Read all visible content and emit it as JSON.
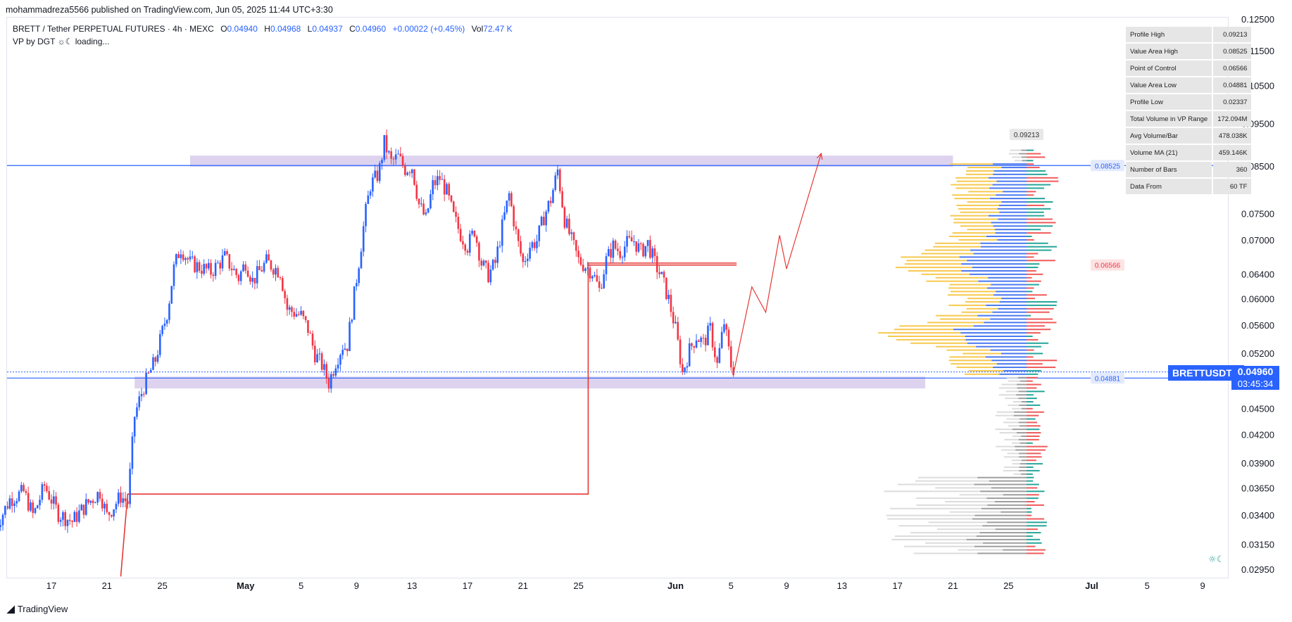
{
  "header": {
    "published": "mohammadreza5566 published on TradingView.com, Jun 05, 2025 11:44 UTC+3:30"
  },
  "legend": {
    "symbol": "BRETT / Tether PERPETUAL FUTURES · 4h · MEXC",
    "o_label": "O",
    "o_value": "0.04940",
    "h_label": "H",
    "h_value": "0.04968",
    "l_label": "L",
    "l_value": "0.04937",
    "c_label": "C",
    "c_value": "0.04960",
    "change": "+0.00022 (+0.45%)",
    "vol_label": "Vol",
    "vol_value": "72.47 K"
  },
  "indicator": {
    "name": "VP by DGT",
    "status": "loading..."
  },
  "vp_stats": [
    {
      "label": "Profile High",
      "value": "0.09213"
    },
    {
      "label": "Value Area High",
      "value": "0.08525"
    },
    {
      "label": "Point of Control",
      "value": "0.06566"
    },
    {
      "label": "Value Area Low",
      "value": "0.04881"
    },
    {
      "label": "Profile Low",
      "value": "0.02337"
    },
    {
      "label": "Total Volume in VP Range",
      "value": "172.094M"
    },
    {
      "label": "Avg Volume/Bar",
      "value": "478.038K"
    },
    {
      "label": "Volume MA (21)",
      "value": "459.146K"
    },
    {
      "label": "Number of Bars",
      "value": "360"
    },
    {
      "label": "Data From",
      "value": "60 TF"
    }
  ],
  "price_tag": {
    "symbol": "BRETTUSDT.P",
    "last": "0.04960",
    "timer": "03:45:34"
  },
  "footer": {
    "brand": "TradingView"
  },
  "colors": {
    "up": "#2962ff",
    "down": "#f23645",
    "value_area_fill": "#d1c4e9",
    "vp_up": "#f7c94f",
    "vp_down": "#4a78f0",
    "vp_delta_up": "#26a69a",
    "vp_delta_down": "#f05a5a",
    "vp_out": "#9e9e9e",
    "vp_out_light": "#dcdcdc",
    "line_red": "#e53935",
    "line_blue": "#2962ff"
  },
  "chart_data": {
    "type": "candlestick",
    "title": "BRETT / Tether PERPETUAL FUTURES · 4h · MEXC",
    "y_axis": {
      "scale": "log",
      "range": [
        0.0285,
        0.126
      ],
      "ticks": [
        "0.12500",
        "0.11500",
        "0.10500",
        "0.09500",
        "0.08500",
        "0.07500",
        "0.07000",
        "0.06400",
        "0.06000",
        "0.05600",
        "0.05200",
        "0.04960",
        "0.04500",
        "0.04200",
        "0.03900",
        "0.03650",
        "0.03400",
        "0.03150",
        "0.02950"
      ]
    },
    "x_axis": {
      "ticks": [
        {
          "date": "2025-04-17",
          "label": "17"
        },
        {
          "date": "2025-04-21",
          "label": "21"
        },
        {
          "date": "2025-04-25",
          "label": "25"
        },
        {
          "date": "2025-05-01",
          "label": "May"
        },
        {
          "date": "2025-05-05",
          "label": "5"
        },
        {
          "date": "2025-05-09",
          "label": "9"
        },
        {
          "date": "2025-05-13",
          "label": "13"
        },
        {
          "date": "2025-05-17",
          "label": "17"
        },
        {
          "date": "2025-05-21",
          "label": "21"
        },
        {
          "date": "2025-05-25",
          "label": "25"
        },
        {
          "date": "2025-06-01",
          "label": "Jun"
        },
        {
          "date": "2025-06-05",
          "label": "5"
        },
        {
          "date": "2025-06-09",
          "label": "9"
        },
        {
          "date": "2025-06-13",
          "label": "13"
        },
        {
          "date": "2025-06-17",
          "label": "17"
        },
        {
          "date": "2025-06-21",
          "label": "21"
        },
        {
          "date": "2025-06-25",
          "label": "25"
        },
        {
          "date": "2025-07-01",
          "label": "Jul"
        },
        {
          "date": "2025-07-05",
          "label": "5"
        },
        {
          "date": "2025-07-09",
          "label": "9"
        }
      ]
    },
    "price_path": [
      [
        "2025-04-13",
        0.033
      ],
      [
        "2025-04-14",
        0.0355
      ],
      [
        "2025-04-15",
        0.0362
      ],
      [
        "2025-04-15.7",
        0.034
      ],
      [
        "2025-04-16.5",
        0.0368
      ],
      [
        "2025-04-17.5",
        0.0342
      ],
      [
        "2025-04-18.5",
        0.0335
      ],
      [
        "2025-04-19.5",
        0.035
      ],
      [
        "2025-04-20.5",
        0.0362
      ],
      [
        "2025-04-21",
        0.034
      ],
      [
        "2025-04-22",
        0.0358
      ],
      [
        "2025-04-22.5",
        0.0352
      ],
      [
        "2025-04-23",
        0.0442
      ],
      [
        "2025-04-23.6",
        0.0475
      ],
      [
        "2025-04-24.5",
        0.0512
      ],
      [
        "2025-04-25.4",
        0.0585
      ],
      [
        "2025-04-25.8",
        0.0648
      ],
      [
        "2025-04-26.3",
        0.0688
      ],
      [
        "2025-04-27",
        0.066
      ],
      [
        "2025-04-28.5",
        0.0645
      ],
      [
        "2025-04-29.5",
        0.067
      ],
      [
        "2025-04-30.5",
        0.0635
      ],
      [
        "2025-05-01",
        0.0662
      ],
      [
        "2025-05-01.5",
        0.063
      ],
      [
        "2025-05-02.5",
        0.0662
      ],
      [
        "2025-05-03.5",
        0.0645
      ],
      [
        "2025-05-04",
        0.0585
      ],
      [
        "2025-05-05",
        0.0575
      ],
      [
        "2025-05-05.5",
        0.0555
      ],
      [
        "2025-05-06",
        0.052
      ],
      [
        "2025-05-06.5",
        0.0505
      ],
      [
        "2025-05-07",
        0.0482
      ],
      [
        "2025-05-07.5",
        0.051
      ],
      [
        "2025-05-08",
        0.0532
      ],
      [
        "2025-05-08.3",
        0.0528
      ],
      [
        "2025-05-08.8",
        0.0602
      ],
      [
        "2025-05-09.2",
        0.0668
      ],
      [
        "2025-05-09.6",
        0.0745
      ],
      [
        "2025-05-10",
        0.081
      ],
      [
        "2025-05-10.6",
        0.0835
      ],
      [
        "2025-05-11",
        0.0905
      ],
      [
        "2025-05-11.5",
        0.086
      ],
      [
        "2025-05-12",
        0.0872
      ],
      [
        "2025-05-12.5",
        0.0845
      ],
      [
        "2025-05-13",
        0.085
      ],
      [
        "2025-05-13.5",
        0.077
      ],
      [
        "2025-05-14",
        0.074
      ],
      [
        "2025-05-14.5",
        0.081
      ],
      [
        "2025-05-15",
        0.0825
      ],
      [
        "2025-05-15.5",
        0.0795
      ],
      [
        "2025-05-16",
        0.0745
      ],
      [
        "2025-05-16.5",
        0.0712
      ],
      [
        "2025-05-17",
        0.069
      ],
      [
        "2025-05-17.5",
        0.072
      ],
      [
        "2025-05-18",
        0.066
      ],
      [
        "2025-05-18.5",
        0.064
      ],
      [
        "2025-05-19",
        0.066
      ],
      [
        "2025-05-19.6",
        0.074
      ],
      [
        "2025-05-20",
        0.079
      ],
      [
        "2025-05-20.6",
        0.07
      ],
      [
        "2025-05-21",
        0.066
      ],
      [
        "2025-05-21.5",
        0.069
      ],
      [
        "2025-05-22",
        0.07
      ],
      [
        "2025-05-22.5",
        0.0745
      ],
      [
        "2025-05-23",
        0.078
      ],
      [
        "2025-05-23.5",
        0.0842
      ],
      [
        "2025-05-24",
        0.074
      ],
      [
        "2025-05-24.5",
        0.07
      ],
      [
        "2025-05-25",
        0.0665
      ],
      [
        "2025-05-26",
        0.0645
      ],
      [
        "2025-05-26.5",
        0.0615
      ],
      [
        "2025-05-27",
        0.0665
      ],
      [
        "2025-05-27.5",
        0.069
      ],
      [
        "2025-05-28",
        0.068
      ],
      [
        "2025-05-28.5",
        0.0695
      ],
      [
        "2025-05-29",
        0.07
      ],
      [
        "2025-05-29.5",
        0.068
      ],
      [
        "2025-05-30",
        0.0695
      ],
      [
        "2025-05-30.5",
        0.066
      ],
      [
        "2025-05-31",
        0.0635
      ],
      [
        "2025-05-31.5",
        0.06
      ],
      [
        "2025-06-01",
        0.0555
      ],
      [
        "2025-06-01.5",
        0.0495
      ],
      [
        "2025-06-02",
        0.0525
      ],
      [
        "2025-06-02.5",
        0.0545
      ],
      [
        "2025-06-03",
        0.0535
      ],
      [
        "2025-06-03.5",
        0.0555
      ],
      [
        "2025-06-04",
        0.0505
      ],
      [
        "2025-06-04.5",
        0.0565
      ],
      [
        "2025-06-05",
        0.0505
      ],
      [
        "2025-06-05.3",
        0.0496
      ]
    ],
    "lines": [
      {
        "name": "value_area_high",
        "price": 0.08525
      },
      {
        "name": "value_area_low",
        "price": 0.04881
      },
      {
        "name": "point_of_control",
        "price": 0.06566
      }
    ],
    "value_area_zones": [
      {
        "from": "2025-04-27",
        "to": "2025-06-21",
        "top": 0.0875,
        "bottom": 0.085
      },
      {
        "from": "2025-04-23",
        "to": "2025-06-19",
        "top": 0.049,
        "bottom": 0.0475
      }
    ],
    "projection_path": [
      [
        "2025-06-05.2",
        0.0496
      ],
      [
        "2025-06-06.5",
        0.062
      ],
      [
        "2025-06-07.5",
        0.058
      ],
      [
        "2025-06-08.5",
        0.071
      ],
      [
        "2025-06-09",
        0.065
      ],
      [
        "2025-06-11.5",
        0.088
      ]
    ],
    "step_line": [
      [
        "2025-04-22",
        0.029
      ],
      [
        "2025-04-22.5",
        0.036
      ],
      [
        "2025-05-25.7",
        0.036
      ],
      [
        "2025-05-25.7",
        0.066
      ],
      [
        "2025-06-05.4",
        0.066
      ]
    ]
  }
}
